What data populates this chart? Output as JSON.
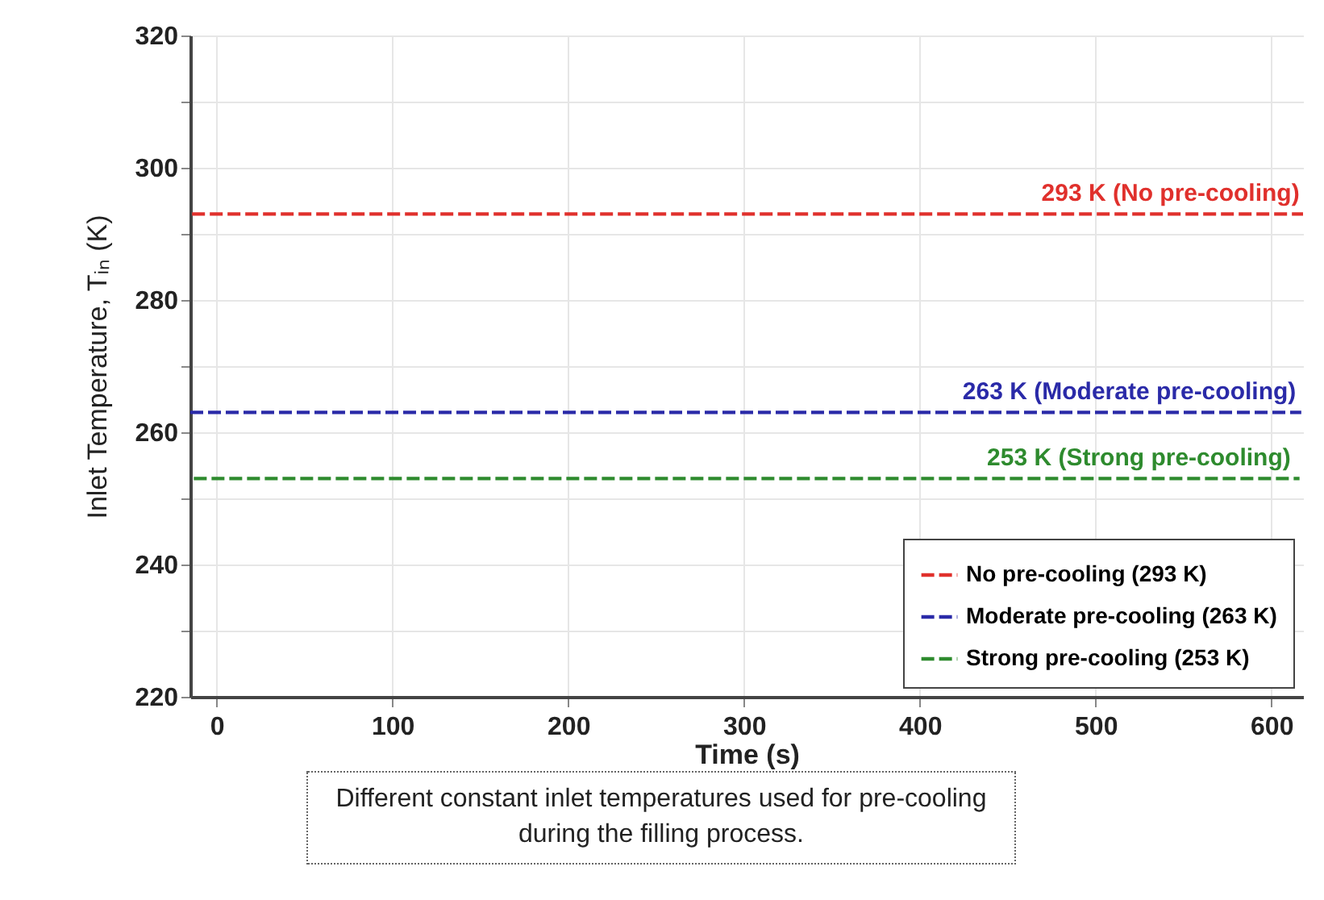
{
  "chart_data": {
    "type": "line",
    "xlabel": "Time  (s)",
    "ylabel": "Inlet Temperature, Tᵢₙ (K)",
    "xlim": [
      -15,
      618
    ],
    "xticks": [
      0,
      100,
      200,
      300,
      400,
      500,
      600
    ],
    "ylim": [
      220,
      320
    ],
    "yticks": [
      220,
      {
        "value": 230,
        "label": null
      },
      240,
      {
        "value": 250,
        "label": null
      },
      260,
      {
        "value": 270,
        "label": null
      },
      280,
      {
        "value": 290,
        "label": null
      },
      300,
      {
        "value": 310,
        "label": null
      },
      320
    ],
    "series": [
      {
        "name": "No pre-cooling (293 K)",
        "color": "#e0302c",
        "x": [
          -14,
          618
        ],
        "values": [
          293,
          293
        ]
      },
      {
        "name": "Moderate pre-cooling (263 K)",
        "color": "#2a2aa8",
        "x": [
          -15,
          617
        ],
        "values": [
          263,
          263
        ]
      },
      {
        "name": "Strong pre-cooling (253 K)",
        "color": "#2e8b2e",
        "x": [
          -13,
          616
        ],
        "values": [
          253,
          253
        ]
      }
    ],
    "annotations": [
      {
        "text": "293 K (No pre-cooling)",
        "x": 616,
        "y": 293
      },
      {
        "text": "263 K (Moderate pre-cooling)",
        "x": 614,
        "y": 263
      },
      {
        "text": "253 K (Strong pre-cooling)",
        "x": 611,
        "y": 253
      },
      "Different constant inlet temperatures used for pre-cooling during the filling process."
    ],
    "grid": true,
    "legend": "bottom right",
    "line_style": "dashed",
    "marker": "none"
  }
}
